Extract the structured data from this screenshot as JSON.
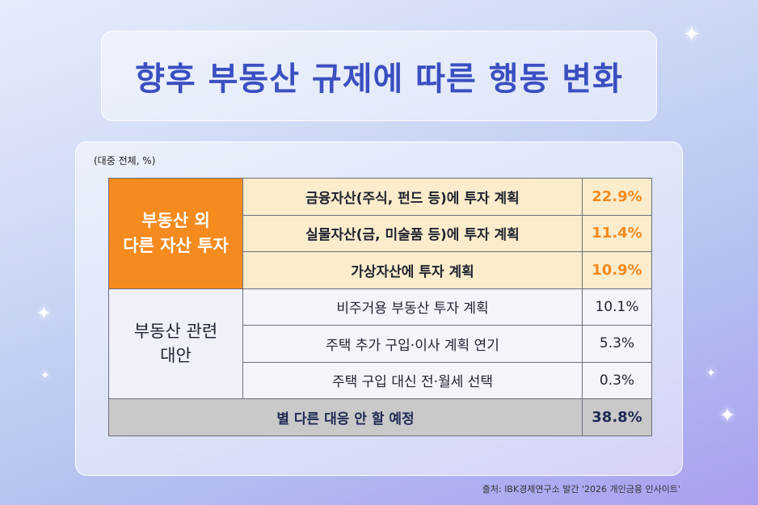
{
  "title": "향후 부동산 규제에 따른 행동 변화",
  "unit_note": "(대중 전체, %)",
  "source": "출처: IBK경제연구소 발간 '2026 개인금융 인사이트'",
  "colors": {
    "accent_orange": "#f58a1f",
    "title_blue": "#3a4fc0",
    "highlight_row": "#fbeccb",
    "total_row": "#c9c9c9"
  },
  "chart_data": {
    "type": "table",
    "groups": [
      {
        "category_line1": "부동산 외",
        "category_line2": "다른 자산 투자",
        "rows": [
          {
            "item": "금융자산(주식, 펀드 등)에 투자 계획",
            "value": "22.9%"
          },
          {
            "item": "실물자산(금, 미술품 등)에 투자 계획",
            "value": "11.4%"
          },
          {
            "item": "가상자산에 투자 계획",
            "value": "10.9%"
          }
        ]
      },
      {
        "category_line1": "부동산 관련",
        "category_line2": "대안",
        "rows": [
          {
            "item": "비주거용 부동산 투자 계획",
            "value": "10.1%"
          },
          {
            "item": "주택 추가 구입·이사 계획 연기",
            "value": "5.3%"
          },
          {
            "item": "주택 구입 대신 전·월세 선택",
            "value": "0.3%"
          }
        ]
      }
    ],
    "total": {
      "item": "별 다른 대응 안 할 예정",
      "value": "38.8%"
    }
  }
}
